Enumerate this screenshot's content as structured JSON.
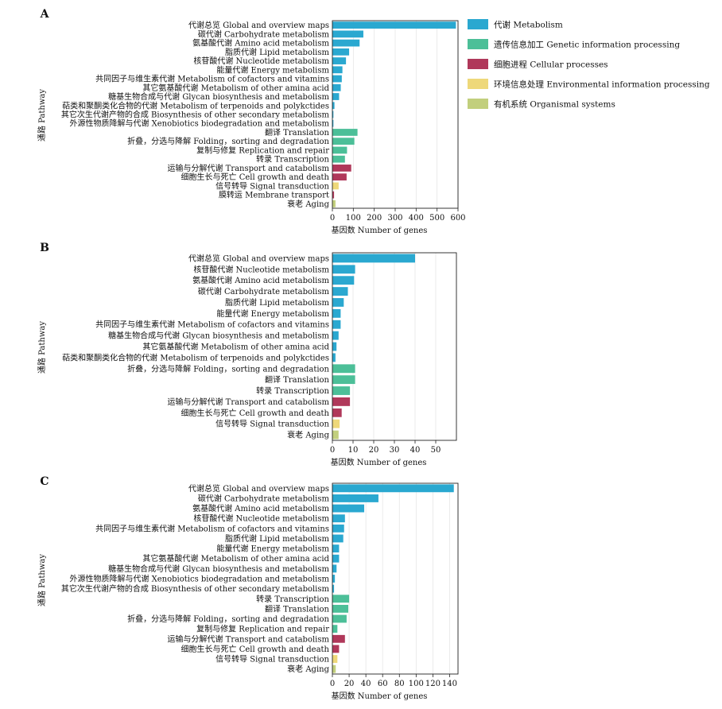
{
  "legend": {
    "items": [
      {
        "label": "代谢  Metabolism",
        "color": "#2aa8d0"
      },
      {
        "label": "遗传信息加工  Genetic information processing",
        "color": "#4cbf98"
      },
      {
        "label": "细胞进程    Cellular processes",
        "color": "#b0385a"
      },
      {
        "label": "环境信息处理  Environmental information processing",
        "color": "#eed87a"
      },
      {
        "label": "有机系统  Organismal systems",
        "color": "#c2cf7d"
      }
    ]
  },
  "chart_data": [
    {
      "type": "bar",
      "orientation": "horizontal",
      "panel_label": "A",
      "xlabel": "基因数  Number of genes",
      "ylabel": "通路  Pathway",
      "xlim": [
        0,
        600
      ],
      "xticks": [
        0,
        100,
        200,
        300,
        400,
        500,
        600
      ],
      "categories": [
        "代谢总览 Global and overview maps",
        "碳代谢 Carbohydrate metabolism",
        "氨基酸代谢 Amino acid metabolism",
        "脂质代谢 Lipid metabolism",
        "核苷酸代谢 Nucleotide metabolism",
        "能量代谢 Energy metabolism",
        "共同因子与维生素代谢 Metabolism of cofactors and vitamins",
        "其它氨基酸代谢 Metabolism of other amina acid",
        "糖基生物合成与代谢 Glycan biosynthesis and metabolism",
        "萜类和聚酮类化合物的代谢 Metabolism of terpenoids and polykctides",
        "其它次生代谢产物的合成 Biosynthesis of other secondary metabolism",
        "外源性物质降解与代谢 Xenobiotics biodegradation and metabolism",
        "翻译 Translation",
        "折叠，分选与降解 Folding，sorting and degradation",
        "复制与修复 Replication and repair",
        "转录 Transcription",
        "运输与分解代谢 Transport and catabolism",
        "细胞生长与死亡 Cell growth and death",
        "信号转导 Signal transduction",
        "膜转运 Membrane transport",
        "衰老 Aging"
      ],
      "values": [
        590,
        148,
        130,
        80,
        65,
        48,
        45,
        40,
        32,
        10,
        5,
        5,
        120,
        105,
        70,
        60,
        90,
        68,
        30,
        8,
        15
      ],
      "groups": [
        0,
        0,
        0,
        0,
        0,
        0,
        0,
        0,
        0,
        0,
        0,
        0,
        1,
        1,
        1,
        1,
        2,
        2,
        3,
        2,
        4
      ]
    },
    {
      "type": "bar",
      "orientation": "horizontal",
      "panel_label": "B",
      "xlabel": "基因数 Number of genes",
      "ylabel": "通路  Pathway",
      "xlim": [
        0,
        60
      ],
      "xticks": [
        0,
        10,
        20,
        30,
        40,
        50
      ],
      "categories": [
        "代谢总览 Global and overview maps",
        "核苷酸代谢 Nucleotide metabolism",
        "氨基酸代谢 Amino acid metabolism",
        "碳代谢 Carbohydrate metabolism",
        "脂质代谢 Lipid metabolism",
        "能量代谢 Energy metabolism",
        "共同因子与维生素代谢 Metabolism of cofactors and vitamins",
        "糖基生物合成与代谢 Glycan biosynthesis and metabolism",
        "其它氨基酸代谢 Metabolism of other amina acid",
        "萜类和聚酮类化合物的代谢 Metabolism of terpenoids and polykctides",
        "折叠，分选与降解 Folding，sorting and degradation",
        "翻译 Translation",
        "转录 Transcription",
        "运输与分解代谢 Transport and catabolism",
        "细胞生长与死亡 Cell growth and death",
        "信号转导 Signal transduction",
        "衰老 Aging"
      ],
      "values": [
        40,
        11,
        10.5,
        7.5,
        5.5,
        4,
        4,
        3,
        2,
        1.5,
        11,
        11,
        8.5,
        8.5,
        4.5,
        3.5,
        3
      ],
      "groups": [
        0,
        0,
        0,
        0,
        0,
        0,
        0,
        0,
        0,
        0,
        1,
        1,
        1,
        2,
        2,
        3,
        4
      ]
    },
    {
      "type": "bar",
      "orientation": "horizontal",
      "panel_label": "C",
      "xlabel": "基因数 Number of genes",
      "ylabel": "通路  Pathway",
      "xlim": [
        0,
        150
      ],
      "xticks": [
        0,
        20,
        40,
        60,
        80,
        100,
        120,
        140
      ],
      "categories": [
        "代谢总览 Global and overview maps",
        "碳代谢 Carbohydrate metabolism",
        "氨基酸代谢 Amino acid metabolism",
        "核苷酸代谢 Nucleotide metabolism",
        "共同因子与维生素代谢 Metabolism of cofactors and vitamins",
        "脂质代谢 Lipid metabolism",
        "能量代谢 Energy metabolism",
        "其它氨基酸代谢 Metabolism of other amina acid",
        "糖基生物合成与代谢 Glycan biosynthesis and metabolism",
        "外源性物质降解与代谢 Xenobiotics biodegradation and metabolism",
        "其它次生代谢产物的合成 Biosynthesis of other secondary metabolism",
        "转录 Transcription",
        "翻译 Translation",
        "折叠，分选与降解 Folding，sorting and degradation",
        "复制与修复 Replication and repair",
        "运输与分解代谢 Transport and catabolism",
        "细胞生长与死亡 Cell growth and death",
        "信号转导 Signal transduction",
        "衰老 Aging"
      ],
      "values": [
        145,
        55,
        38,
        15,
        14,
        13,
        8,
        8,
        5,
        3,
        2,
        20,
        19,
        17,
        6,
        15,
        8,
        6,
        4
      ],
      "groups": [
        0,
        0,
        0,
        0,
        0,
        0,
        0,
        0,
        0,
        0,
        0,
        1,
        1,
        1,
        1,
        2,
        2,
        3,
        4
      ]
    }
  ]
}
